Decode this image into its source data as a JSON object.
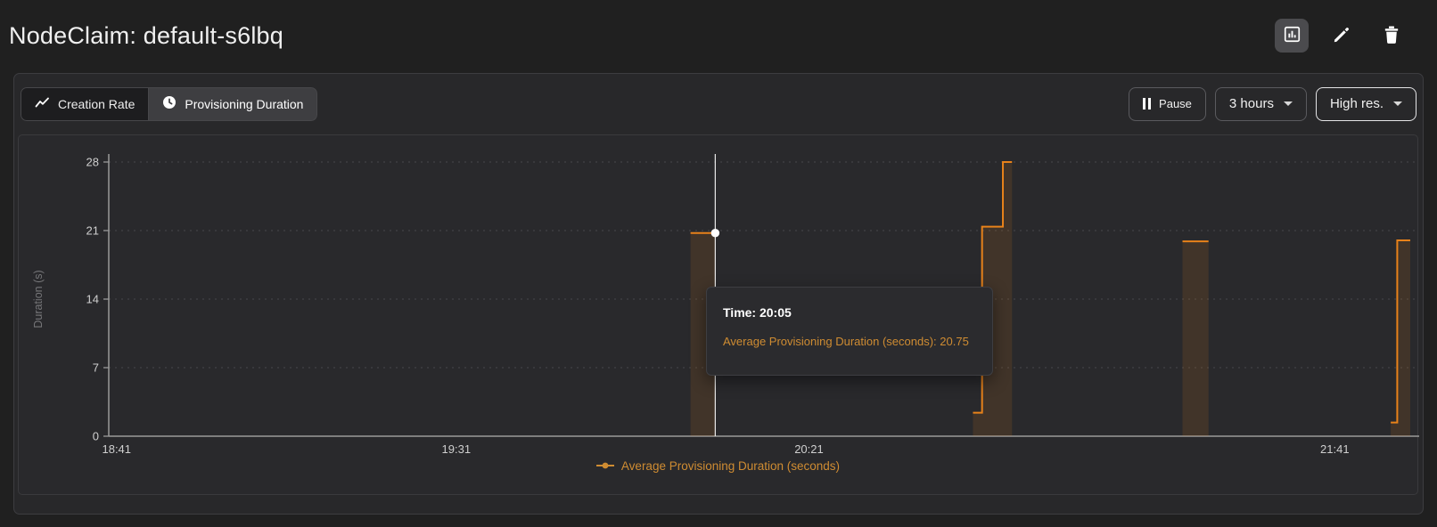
{
  "window": {
    "title": "NodeClaim: default-s6lbq"
  },
  "header": {
    "actions": [
      {
        "name": "bar-chart-icon",
        "active": true
      },
      {
        "name": "edit-icon",
        "active": false
      },
      {
        "name": "delete-icon",
        "active": false
      }
    ]
  },
  "toolbar": {
    "tabs": [
      {
        "label": "Creation Rate",
        "icon": "trend-line-icon",
        "selected": false
      },
      {
        "label": "Provisioning Duration",
        "icon": "clock-icon",
        "selected": true
      }
    ],
    "pause_label": "Pause",
    "range_label": "3 hours",
    "resolution_label": "High res."
  },
  "chart_data": {
    "type": "line",
    "style": "stepped",
    "title": "",
    "xlabel": "",
    "ylabel": "Duration (s)",
    "ylim": [
      0,
      28
    ],
    "yticks": [
      0,
      7,
      14,
      21,
      28
    ],
    "grid": "horizontal-dotted",
    "x_ticks": [
      {
        "label": "18:41",
        "f": 0.006
      },
      {
        "label": "19:31",
        "f": 0.267
      },
      {
        "label": "20:21",
        "f": 0.538
      },
      {
        "label": "21:41",
        "f": 0.942
      }
    ],
    "series": [
      {
        "name": "Average Provisioning Duration (seconds)",
        "color": "#e8821a",
        "fill": "rgba(232,130,26,0.13)",
        "segments": [
          {
            "points": [
              [
                0.447,
                20.75
              ]
            ],
            "end": 0.466
          },
          {
            "points": [
              [
                0.664,
                2.4
              ],
              [
                0.671,
                21.4
              ],
              [
                0.687,
                28
              ]
            ],
            "end": 0.694
          },
          {
            "points": [
              [
                0.825,
                19.9
              ]
            ],
            "end": 0.845
          },
          {
            "points": [
              [
                0.985,
                1.4
              ],
              [
                0.99,
                20.0
              ]
            ],
            "end": 1.0
          }
        ]
      }
    ],
    "hover": {
      "f": 0.466,
      "value": 20.75
    },
    "legend": {
      "label": "Average Provisioning Duration (seconds)",
      "position": "bottom-center"
    }
  },
  "tooltip": {
    "time_label": "Time: 20:05",
    "value_label": "Average Provisioning Duration (seconds): 20.75"
  },
  "colors": {
    "series": "#e8821a",
    "series_fill": "rgba(232,130,26,0.13)",
    "series_text": "#cf8c32",
    "page_bg": "#202020",
    "panel_bg": "#28282a",
    "axis": "#9a9a9a",
    "grid": "#47474b",
    "tick_text": "#cfcfcf"
  }
}
